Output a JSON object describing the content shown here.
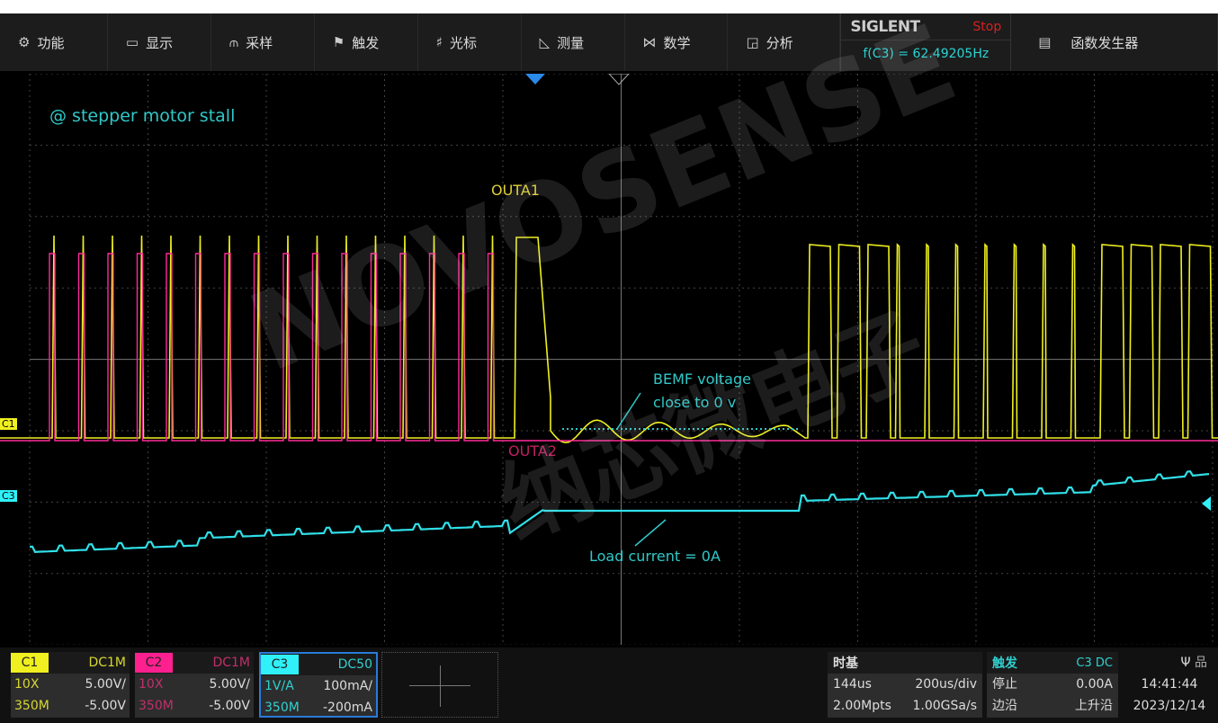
{
  "menu": [
    {
      "icon": "gear-icon",
      "glyph": "⚙",
      "label": "功能"
    },
    {
      "icon": "display-icon",
      "glyph": "▭",
      "label": "显示"
    },
    {
      "icon": "acquire-icon",
      "glyph": "⫙",
      "label": "采样"
    },
    {
      "icon": "flag-icon",
      "glyph": "⚑",
      "label": "触发"
    },
    {
      "icon": "cursor-icon",
      "glyph": "♯",
      "label": "光标"
    },
    {
      "icon": "measure-icon",
      "glyph": "◺",
      "label": "测量"
    },
    {
      "icon": "math-icon",
      "glyph": "⋈",
      "label": "数学"
    },
    {
      "icon": "analysis-icon",
      "glyph": "◲",
      "label": "分析"
    }
  ],
  "brand": {
    "logo": "SIGLENT",
    "status": "Stop",
    "frequency": "f(C3) = 62.49205Hz"
  },
  "generator": {
    "icon": "function-generator-icon",
    "glyph": "▤",
    "label": "函数发生器"
  },
  "annotations": {
    "title": "@ stepper motor stall",
    "outa1": "OUTA1",
    "outa2": "OUTA2",
    "bemf1": "BEMF voltage",
    "bemf2": "close to 0  v",
    "load": "Load current = 0A"
  },
  "watermark": {
    "text1": "NOVOSENSE",
    "text2": "纳芯微电子"
  },
  "markers": {
    "c1": "C1",
    "c3": "C3"
  },
  "colors": {
    "c1": "#f0f020",
    "c2": "#ff2a9a",
    "c3": "#30e0e8",
    "annot": "#30c8c8"
  },
  "channels": [
    {
      "name": "C1",
      "coupling": "DC1M",
      "probe": "10X",
      "scale": "5.00V/",
      "bw": "350M",
      "offset": "-5.00V",
      "color": "#f0f020",
      "textcolor": "#d8d830"
    },
    {
      "name": "C2",
      "coupling": "DC1M",
      "probe": "10X",
      "scale": "5.00V/",
      "bw": "350M",
      "offset": "-5.00V",
      "color": "#ff2090",
      "textcolor": "#c0306a"
    },
    {
      "name": "C3",
      "coupling": "DC50",
      "probe": "1V/A",
      "scale": "100mA/",
      "bw": "350M",
      "offset": "-200mA",
      "color": "#30f0f8",
      "textcolor": "#30d0d0"
    }
  ],
  "timebase": {
    "label": "时基",
    "delay": "144us",
    "scale": "200us/div",
    "points": "2.00Mpts",
    "rate": "1.00GSa/s"
  },
  "trigger": {
    "label": "触发",
    "source": "C3 DC",
    "state": "停止",
    "level": "0.00A",
    "type": "边沿",
    "slope": "上升沿"
  },
  "clock": {
    "time": "14:41:44",
    "date": "2023/12/14"
  }
}
